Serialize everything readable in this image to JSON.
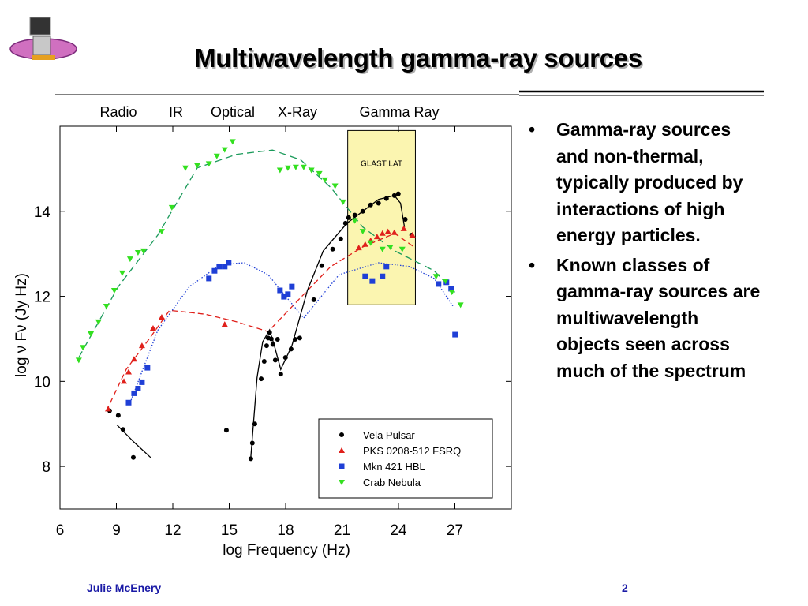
{
  "title": "Multiwavelength gamma-ray sources",
  "bullets": [
    "Gamma-ray sources and non-thermal, typically produced by interactions of high energy particles.",
    "Known classes of gamma-ray sources are multiwavelength objects seen across much of the spectrum"
  ],
  "footer": {
    "author": "Julie McEnery",
    "page": "2"
  },
  "chart_data": {
    "type": "scatter",
    "xlabel": "log Frequency (Hz)",
    "ylabel": "log ν Fν   (Jy Hz)",
    "band_labels": [
      "Radio",
      "IR",
      "Optical",
      "X-Ray",
      "Gamma Ray"
    ],
    "xlim": [
      6,
      30
    ],
    "ylim": [
      7,
      16
    ],
    "xticks": [
      6,
      9,
      12,
      15,
      18,
      21,
      24,
      27
    ],
    "yticks": [
      8,
      10,
      12,
      14
    ],
    "glast_box": {
      "label": "GLAST LAT",
      "color": "#fbf5b0",
      "xlim": [
        21.3,
        24.9
      ],
      "ylim": [
        11.8,
        15.9
      ]
    },
    "series": [
      {
        "name": "Vela Pulsar",
        "color": "#000000",
        "marker": "circle",
        "x": [
          8.64,
          9.1,
          9.35,
          9.9,
          14.85,
          16.15,
          16.23,
          16.36,
          16.7,
          16.86,
          16.99,
          17.07,
          17.15,
          17.24,
          17.32,
          17.45,
          17.57,
          17.74,
          17.99,
          18.29,
          18.5,
          18.75,
          19.5,
          19.92,
          20.5,
          20.93,
          21.18,
          21.35,
          21.68,
          22.1,
          22.52,
          22.94,
          23.36,
          23.78,
          23.99,
          24.36,
          24.7
        ],
        "values": [
          9.31,
          9.2,
          8.87,
          8.21,
          8.85,
          8.18,
          8.55,
          9.0,
          10.06,
          10.47,
          10.84,
          11.02,
          11.15,
          11.0,
          10.87,
          10.5,
          10.99,
          10.17,
          10.56,
          10.76,
          10.99,
          11.02,
          11.92,
          12.72,
          13.11,
          13.35,
          13.72,
          13.85,
          13.91,
          14.0,
          14.15,
          14.19,
          14.3,
          14.37,
          14.41,
          13.81,
          13.44
        ]
      },
      {
        "name": "PKS 0208-512 FSRQ",
        "color": "#e0201b",
        "marker": "triangle-up",
        "x": [
          8.56,
          9.4,
          9.65,
          9.94,
          10.36,
          10.95,
          11.41,
          14.76,
          21.89,
          22.23,
          22.52,
          22.86,
          23.15,
          23.44,
          23.78,
          24.28,
          24.74
        ],
        "values": [
          9.35,
          10.0,
          10.22,
          10.52,
          10.84,
          11.25,
          11.51,
          11.34,
          13.14,
          13.22,
          13.31,
          13.4,
          13.48,
          13.52,
          13.5,
          13.59,
          13.44
        ]
      },
      {
        "name": "Mkn 421 HBL",
        "color": "#1f3fd6",
        "marker": "square",
        "x": [
          9.65,
          9.94,
          10.15,
          10.36,
          10.65,
          13.92,
          14.22,
          14.47,
          14.76,
          14.97,
          17.7,
          17.91,
          18.12,
          18.33,
          22.23,
          22.61,
          23.15,
          23.36,
          26.13,
          26.55,
          26.8,
          27.01
        ],
        "values": [
          9.5,
          9.72,
          9.83,
          9.98,
          10.32,
          12.42,
          12.6,
          12.7,
          12.7,
          12.79,
          12.14,
          11.99,
          12.05,
          12.23,
          12.47,
          12.36,
          12.47,
          12.7,
          12.29,
          12.33,
          12.18,
          11.1
        ]
      },
      {
        "name": "Crab Nebula",
        "color": "#33e01f",
        "marker": "triangle-down",
        "x": [
          7.0,
          7.22,
          7.64,
          8.05,
          8.47,
          8.89,
          9.31,
          9.73,
          10.15,
          10.44,
          11.41,
          11.95,
          12.67,
          13.3,
          13.92,
          14.34,
          14.76,
          15.18,
          17.7,
          18.12,
          18.54,
          18.96,
          19.37,
          19.79,
          20.09,
          20.63,
          21.05,
          21.68,
          22.1,
          22.52,
          23.15,
          23.57,
          24.2,
          26.0,
          26.5,
          26.84,
          27.3
        ],
        "values": [
          10.5,
          10.8,
          11.12,
          11.4,
          11.77,
          12.14,
          12.55,
          12.88,
          13.03,
          13.07,
          13.53,
          14.09,
          15.02,
          15.08,
          15.12,
          15.3,
          15.45,
          15.64,
          14.97,
          15.02,
          15.04,
          15.04,
          14.97,
          14.89,
          14.74,
          14.6,
          14.22,
          13.78,
          13.53,
          13.26,
          13.11,
          13.16,
          13.11,
          12.47,
          12.36,
          12.1,
          11.8
        ]
      }
    ],
    "curves": [
      {
        "color": "#1a9a5a",
        "dash": "9 5",
        "x": [
          7.0,
          9.1,
          11.2,
          13.3,
          15.4,
          17.3,
          18.8,
          20.4,
          22.1,
          23.8,
          25.9,
          27.1
        ],
        "y": [
          10.56,
          12.23,
          13.44,
          15.02,
          15.34,
          15.44,
          15.21,
          14.56,
          13.63,
          13.07,
          12.6,
          12.05
        ]
      },
      {
        "color": "#e0201b",
        "dash": "7 4",
        "x": [
          8.47,
          9.52,
          10.78,
          11.83,
          13.72,
          15.4,
          17.07,
          18.75,
          20.4,
          22.1,
          23.8,
          24.83
        ],
        "y": [
          9.31,
          10.28,
          11.02,
          11.67,
          11.58,
          11.4,
          11.17,
          11.95,
          12.7,
          13.16,
          13.48,
          13.16
        ]
      },
      {
        "color": "#1f3fd6",
        "dash": "1.5 2",
        "x": [
          9.73,
          11.2,
          12.88,
          14.55,
          15.8,
          17.07,
          17.91,
          18.96,
          20.84,
          22.94,
          24.6,
          25.9,
          26.9
        ],
        "y": [
          9.5,
          11.2,
          12.23,
          12.75,
          12.79,
          12.51,
          12.05,
          11.49,
          12.51,
          12.79,
          12.7,
          12.42,
          11.77
        ]
      },
      {
        "color": "#000000",
        "dash": "none",
        "x": [
          9.02,
          9.94,
          10.82
        ],
        "y": [
          8.98,
          8.57,
          8.21
        ]
      },
      {
        "color": "#000000",
        "dash": "none",
        "x": [
          16.15,
          16.48,
          16.78,
          17.15,
          17.4,
          17.74,
          18.33,
          19.16,
          20.0,
          21.26,
          22.94,
          23.78,
          24.11,
          24.32
        ],
        "y": [
          8.23,
          10.09,
          10.93,
          11.21,
          10.84,
          10.28,
          10.84,
          12.14,
          13.07,
          13.72,
          14.28,
          14.37,
          14.19,
          13.63
        ]
      }
    ]
  }
}
